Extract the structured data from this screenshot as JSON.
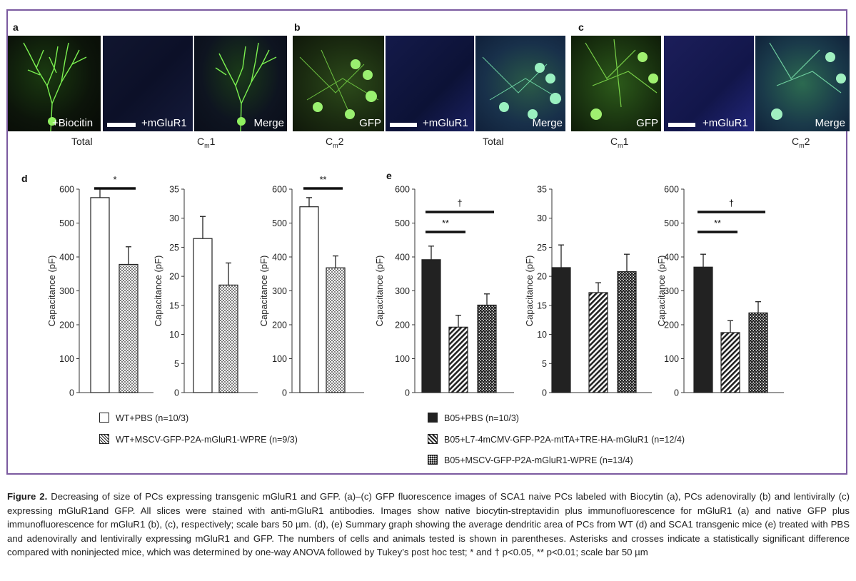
{
  "panels": {
    "a": {
      "label": "a",
      "overlays": [
        "+Biocitin",
        "+mGluR1",
        "Merge"
      ],
      "subs": [
        {
          "main": "Total",
          "sub": ""
        },
        {
          "main": "C",
          "sub": "m",
          "tail": "1"
        }
      ]
    },
    "b": {
      "label": "b",
      "overlays": [
        "GFP",
        "+mGluR1",
        "Merge"
      ],
      "subs": [
        {
          "main": "C",
          "sub": "m",
          "tail": "2"
        },
        {
          "main": "Total",
          "sub": ""
        }
      ]
    },
    "c": {
      "label": "c",
      "overlays": [
        "GFP",
        "+mGluR1",
        "Merge"
      ],
      "subs": [
        {
          "main": "C",
          "sub": "m",
          "tail": "1"
        },
        {
          "main": "C",
          "sub": "m",
          "tail": "2"
        }
      ]
    },
    "d": {
      "label": "d"
    },
    "e": {
      "label": "e"
    }
  },
  "chart_data": [
    {
      "id": "d1",
      "type": "bar",
      "ylabel": "Capacitance (pF)",
      "ylim": [
        0,
        600
      ],
      "yticks": [
        0,
        100,
        200,
        300,
        400,
        500,
        600
      ],
      "categories": [
        "WT+PBS (n=10/3)",
        "WT+MSCV-GFP-P2A-mGluR1-WPRE (n=9/3)"
      ],
      "values": [
        575,
        378
      ],
      "errors": [
        28,
        52
      ],
      "sig": [
        {
          "from": 0,
          "to": 1,
          "label": "*",
          "level": 0
        }
      ]
    },
    {
      "id": "d2",
      "type": "bar",
      "ylabel": "Capacitance (pF)",
      "ylim": [
        0,
        35
      ],
      "yticks": [
        0,
        5,
        10,
        15,
        20,
        25,
        30,
        35
      ],
      "categories": [
        "WT+PBS (n=10/3)",
        "WT+MSCV-GFP-P2A-mGluR1-WPRE (n=9/3)"
      ],
      "values": [
        26.5,
        18.5
      ],
      "errors": [
        3.8,
        3.8
      ],
      "sig": []
    },
    {
      "id": "d3",
      "type": "bar",
      "ylabel": "Capacitance (pF)",
      "ylim": [
        0,
        600
      ],
      "yticks": [
        0,
        100,
        200,
        300,
        400,
        500,
        600
      ],
      "categories": [
        "WT+PBS (n=10/3)",
        "WT+MSCV-GFP-P2A-mGluR1-WPRE (n=9/3)"
      ],
      "values": [
        548,
        368
      ],
      "errors": [
        27,
        35
      ],
      "sig": [
        {
          "from": 0,
          "to": 1,
          "label": "**",
          "level": 0
        }
      ]
    },
    {
      "id": "e1",
      "type": "bar",
      "ylabel": "Capacitance (pF)",
      "ylim": [
        0,
        600
      ],
      "yticks": [
        0,
        100,
        200,
        300,
        400,
        500,
        600
      ],
      "categories": [
        "B05+PBS (n=10/3)",
        "B05+L7-4mCMV-GFP-P2A-mtTA+TRE-HA-mGluR1 (n=12/4)",
        "B05+MSCV-GFP-P2A-mGluR1-WPRE (n=13/4)"
      ],
      "values": [
        392,
        193,
        258
      ],
      "errors": [
        40,
        35,
        33
      ],
      "sig": [
        {
          "from": 0,
          "to": 1,
          "label": "**",
          "level": 0
        },
        {
          "from": 0,
          "to": 2,
          "label": "†",
          "level": 1
        }
      ]
    },
    {
      "id": "e2",
      "type": "bar",
      "ylabel": "Capacitance (pF)",
      "ylim": [
        0,
        35
      ],
      "yticks": [
        0,
        5,
        10,
        15,
        20,
        25,
        30,
        35
      ],
      "categories": [
        "B05+PBS (n=10/3)",
        "B05+L7-4mCMV-GFP-P2A-mtTA+TRE-HA-mGluR1 (n=12/4)",
        "B05+MSCV-GFP-P2A-mGluR1-WPRE (n=13/4)"
      ],
      "values": [
        21.5,
        17.2,
        20.8
      ],
      "errors": [
        3.9,
        1.7,
        3.0
      ],
      "sig": []
    },
    {
      "id": "e3",
      "type": "bar",
      "ylabel": "Capacitance (pF)",
      "ylim": [
        0,
        600
      ],
      "yticks": [
        0,
        100,
        200,
        300,
        400,
        500,
        600
      ],
      "categories": [
        "B05+PBS (n=10/3)",
        "B05+L7-4mCMV-GFP-P2A-mtTA+TRE-HA-mGluR1 (n=12/4)",
        "B05+MSCV-GFP-P2A-mGluR1-WPRE (n=13/4)"
      ],
      "values": [
        370,
        177,
        235
      ],
      "errors": [
        38,
        35,
        33
      ],
      "sig": [
        {
          "from": 0,
          "to": 1,
          "label": "**",
          "level": 0
        },
        {
          "from": 0,
          "to": 2,
          "label": "†",
          "level": 1
        }
      ]
    }
  ],
  "legend_d": [
    "WT+PBS (n=10/3)",
    "WT+MSCV-GFP-P2A-mGluR1-WPRE (n=9/3)"
  ],
  "legend_e": [
    "B05+PBS (n=10/3)",
    "B05+L7-4mCMV-GFP-P2A-mtTA+TRE-HA-mGluR1 (n=12/4)",
    "B05+MSCV-GFP-P2A-mGluR1-WPRE (n=13/4)"
  ],
  "caption": {
    "lead": "Figure 2.",
    "text": " Decreasing of size of PCs expressing transgenic mGluR1 and GFP. (a)–(c) GFP fluorescence images of SCA1 naive PCs labeled with Biocytin (a), PCs adenovirally (b) and lentivirally (c) expressing mGluR1and GFP. All slices were stained with anti-mGluR1 antibodies. Images show native biocytin-streptavidin plus immunofluorescence for mGluR1 (a) and native GFP plus immunofluorescence for mGluR1 (b), (c), respectively; scale bars 50 µm. (d), (e) Summary graph showing the average dendritic area of PCs from WT (d) and SCA1 transgenic mice (e) treated with PBS and adenovirally and lentivirally expressing mGluR1 and GFP. The numbers of cells and animals tested is shown in parentheses. Asterisks and crosses indicate a statistically significant difference compared with noninjected mice, which was determined by one-way ANOVA followed by Tukey’s post hoc test; * and † p<0.05, ** p<0.01; scale bar 50 µm"
  }
}
